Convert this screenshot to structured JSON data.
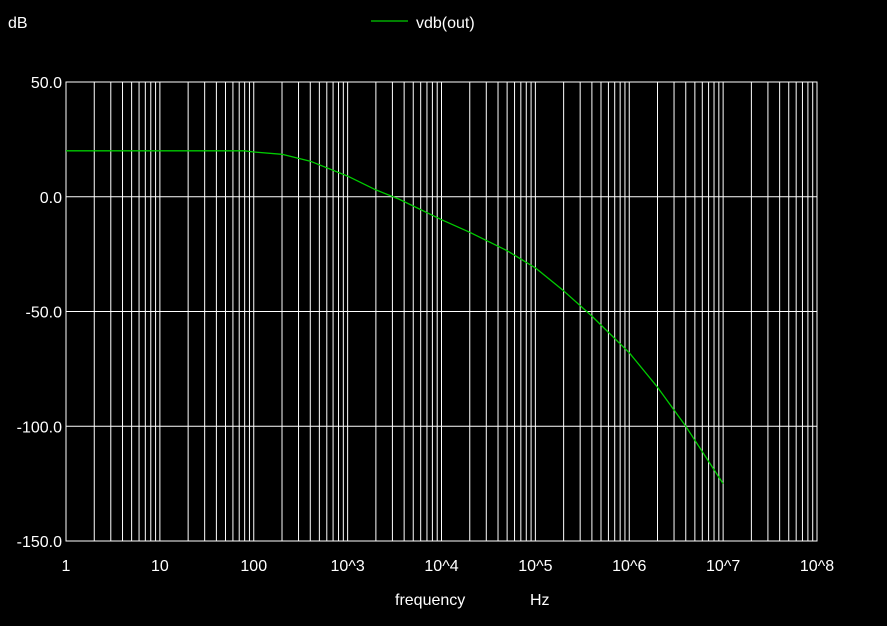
{
  "chart_data": {
    "type": "line",
    "title": "",
    "ylabel": "dB",
    "xlabel": "frequency",
    "xunit": "Hz",
    "xscale": "log",
    "xlim": [
      1,
      100000000
    ],
    "ylim": [
      -150,
      50
    ],
    "grid": true,
    "legend_position": "top-center",
    "x_tick_values": [
      1,
      10,
      100,
      1000,
      10000,
      100000,
      1000000,
      10000000,
      100000000
    ],
    "x_tick_labels": [
      "1",
      "10",
      "100",
      "10^3",
      "10^4",
      "10^5",
      "10^6",
      "10^7",
      "10^8"
    ],
    "y_tick_values": [
      50,
      0,
      -50,
      -100,
      -150
    ],
    "y_tick_labels": [
      "50.0",
      "0.0",
      "-50.0",
      "-100.0",
      "-150.0"
    ],
    "series": [
      {
        "name": "vdb(out)",
        "color": "#00cc00",
        "x": [
          1,
          10,
          30,
          80,
          100,
          200,
          400,
          1000,
          2000,
          3500,
          10000,
          20000,
          50000,
          100000,
          200000,
          400000,
          1000000,
          2000000,
          4000000,
          10000000
        ],
        "y": [
          20,
          20,
          20,
          20,
          19.5,
          18.5,
          15.5,
          9,
          3,
          -1,
          -10,
          -15.5,
          -23.5,
          -31,
          -41,
          -52,
          -68,
          -83,
          -100,
          -125
        ]
      }
    ]
  }
}
